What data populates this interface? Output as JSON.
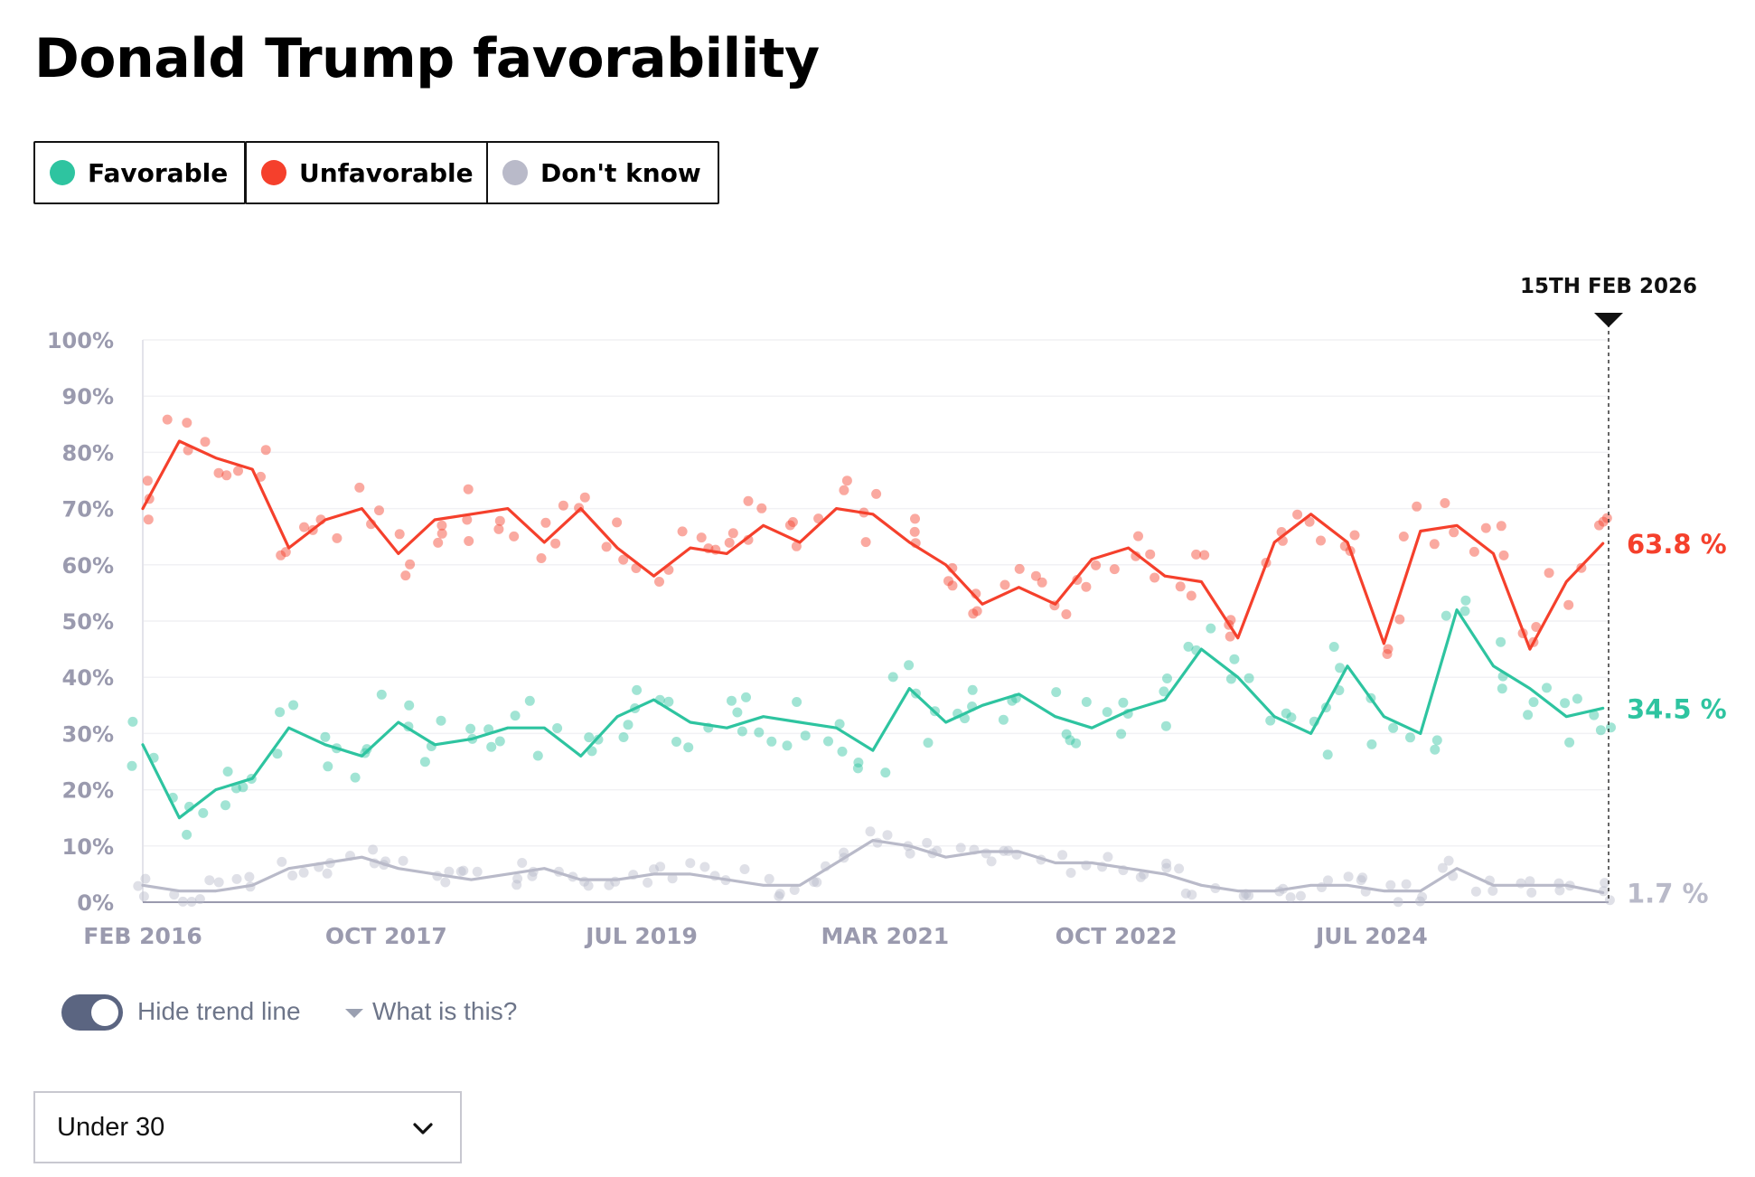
{
  "title": "Donald Trump favorability",
  "legend": [
    {
      "label": "Favorable",
      "color": "#2ec4a0"
    },
    {
      "label": "Unfavorable",
      "color": "#f5402c"
    },
    {
      "label": "Don't know",
      "color": "#b9bac9"
    }
  ],
  "controls": {
    "trend_toggle_label": "Hide trend line",
    "trend_toggle_on": true,
    "help_link": "What is this?",
    "group_select_value": "Under 30"
  },
  "chart_data": {
    "type": "line",
    "x_start": "2016-02",
    "x_end": "2026-02-15",
    "x_tick_labels": [
      "FEB 2016",
      "OCT 2017",
      "JUL 2019",
      "MAR 2021",
      "OCT 2022",
      "JUL 2024"
    ],
    "x_tick_dates": [
      "2016-02",
      "2017-10",
      "2019-07",
      "2021-03",
      "2022-10",
      "2024-07"
    ],
    "y_tick_labels": [
      "0%",
      "10%",
      "20%",
      "30%",
      "40%",
      "50%",
      "60%",
      "70%",
      "80%",
      "90%",
      "100%"
    ],
    "ylim": [
      0,
      100
    ],
    "grid": true,
    "points_shown": true,
    "current_date_label": "15TH FEB 2026",
    "end_labels": [
      "63.8 %",
      "34.5 %",
      "1.7 %"
    ],
    "series": [
      {
        "name": "Unfavorable",
        "color": "#f5402c",
        "end_value": 63.8,
        "x": [
          "2016-02",
          "2016-05",
          "2016-08",
          "2016-11",
          "2017-02",
          "2017-05",
          "2017-08",
          "2017-11",
          "2018-02",
          "2018-05",
          "2018-08",
          "2018-11",
          "2019-02",
          "2019-05",
          "2019-08",
          "2019-11",
          "2020-02",
          "2020-05",
          "2020-08",
          "2020-11",
          "2021-02",
          "2021-05",
          "2021-08",
          "2021-11",
          "2022-02",
          "2022-05",
          "2022-08",
          "2022-11",
          "2023-02",
          "2023-05",
          "2023-08",
          "2023-11",
          "2024-02",
          "2024-05",
          "2024-08",
          "2024-11",
          "2025-02",
          "2025-05",
          "2025-08",
          "2025-11",
          "2026-02"
        ],
        "values": [
          70,
          82,
          79,
          77,
          63,
          68,
          70,
          62,
          68,
          69,
          70,
          64,
          70,
          63,
          58,
          63,
          62,
          67,
          64,
          70,
          69,
          64,
          60,
          53,
          56,
          53,
          61,
          63,
          58,
          57,
          47,
          64,
          69,
          64,
          46,
          66,
          67,
          62,
          45,
          57,
          63.8
        ]
      },
      {
        "name": "Favorable",
        "color": "#2ec4a0",
        "end_value": 34.5,
        "x": [
          "2016-02",
          "2016-05",
          "2016-08",
          "2016-11",
          "2017-02",
          "2017-05",
          "2017-08",
          "2017-11",
          "2018-02",
          "2018-05",
          "2018-08",
          "2018-11",
          "2019-02",
          "2019-05",
          "2019-08",
          "2019-11",
          "2020-02",
          "2020-05",
          "2020-08",
          "2020-11",
          "2021-02",
          "2021-05",
          "2021-08",
          "2021-11",
          "2022-02",
          "2022-05",
          "2022-08",
          "2022-11",
          "2023-02",
          "2023-05",
          "2023-08",
          "2023-11",
          "2024-02",
          "2024-05",
          "2024-08",
          "2024-11",
          "2025-02",
          "2025-05",
          "2025-08",
          "2025-11",
          "2026-02"
        ],
        "values": [
          28,
          15,
          20,
          22,
          31,
          28,
          26,
          32,
          28,
          29,
          31,
          31,
          26,
          33,
          36,
          32,
          31,
          33,
          32,
          31,
          27,
          38,
          32,
          35,
          37,
          33,
          31,
          34,
          36,
          45,
          40,
          33,
          30,
          42,
          33,
          30,
          52,
          42,
          38,
          33,
          34.5
        ]
      },
      {
        "name": "Don't know",
        "color": "#b9bac9",
        "end_value": 1.7,
        "x": [
          "2016-02",
          "2016-05",
          "2016-08",
          "2016-11",
          "2017-02",
          "2017-05",
          "2017-08",
          "2017-11",
          "2018-02",
          "2018-05",
          "2018-08",
          "2018-11",
          "2019-02",
          "2019-05",
          "2019-08",
          "2019-11",
          "2020-02",
          "2020-05",
          "2020-08",
          "2020-11",
          "2021-02",
          "2021-05",
          "2021-08",
          "2021-11",
          "2022-02",
          "2022-05",
          "2022-08",
          "2022-11",
          "2023-02",
          "2023-05",
          "2023-08",
          "2023-11",
          "2024-02",
          "2024-05",
          "2024-08",
          "2024-11",
          "2025-02",
          "2025-05",
          "2025-08",
          "2025-11",
          "2026-02"
        ],
        "values": [
          3,
          2,
          2,
          3,
          6,
          7,
          8,
          6,
          5,
          4,
          5,
          6,
          4,
          4,
          5,
          5,
          4,
          3,
          3,
          7,
          11,
          10,
          8,
          9,
          9,
          7,
          7,
          6,
          5,
          3,
          2,
          2,
          3,
          3,
          2,
          2,
          6,
          3,
          3,
          3,
          1.7
        ]
      }
    ]
  }
}
